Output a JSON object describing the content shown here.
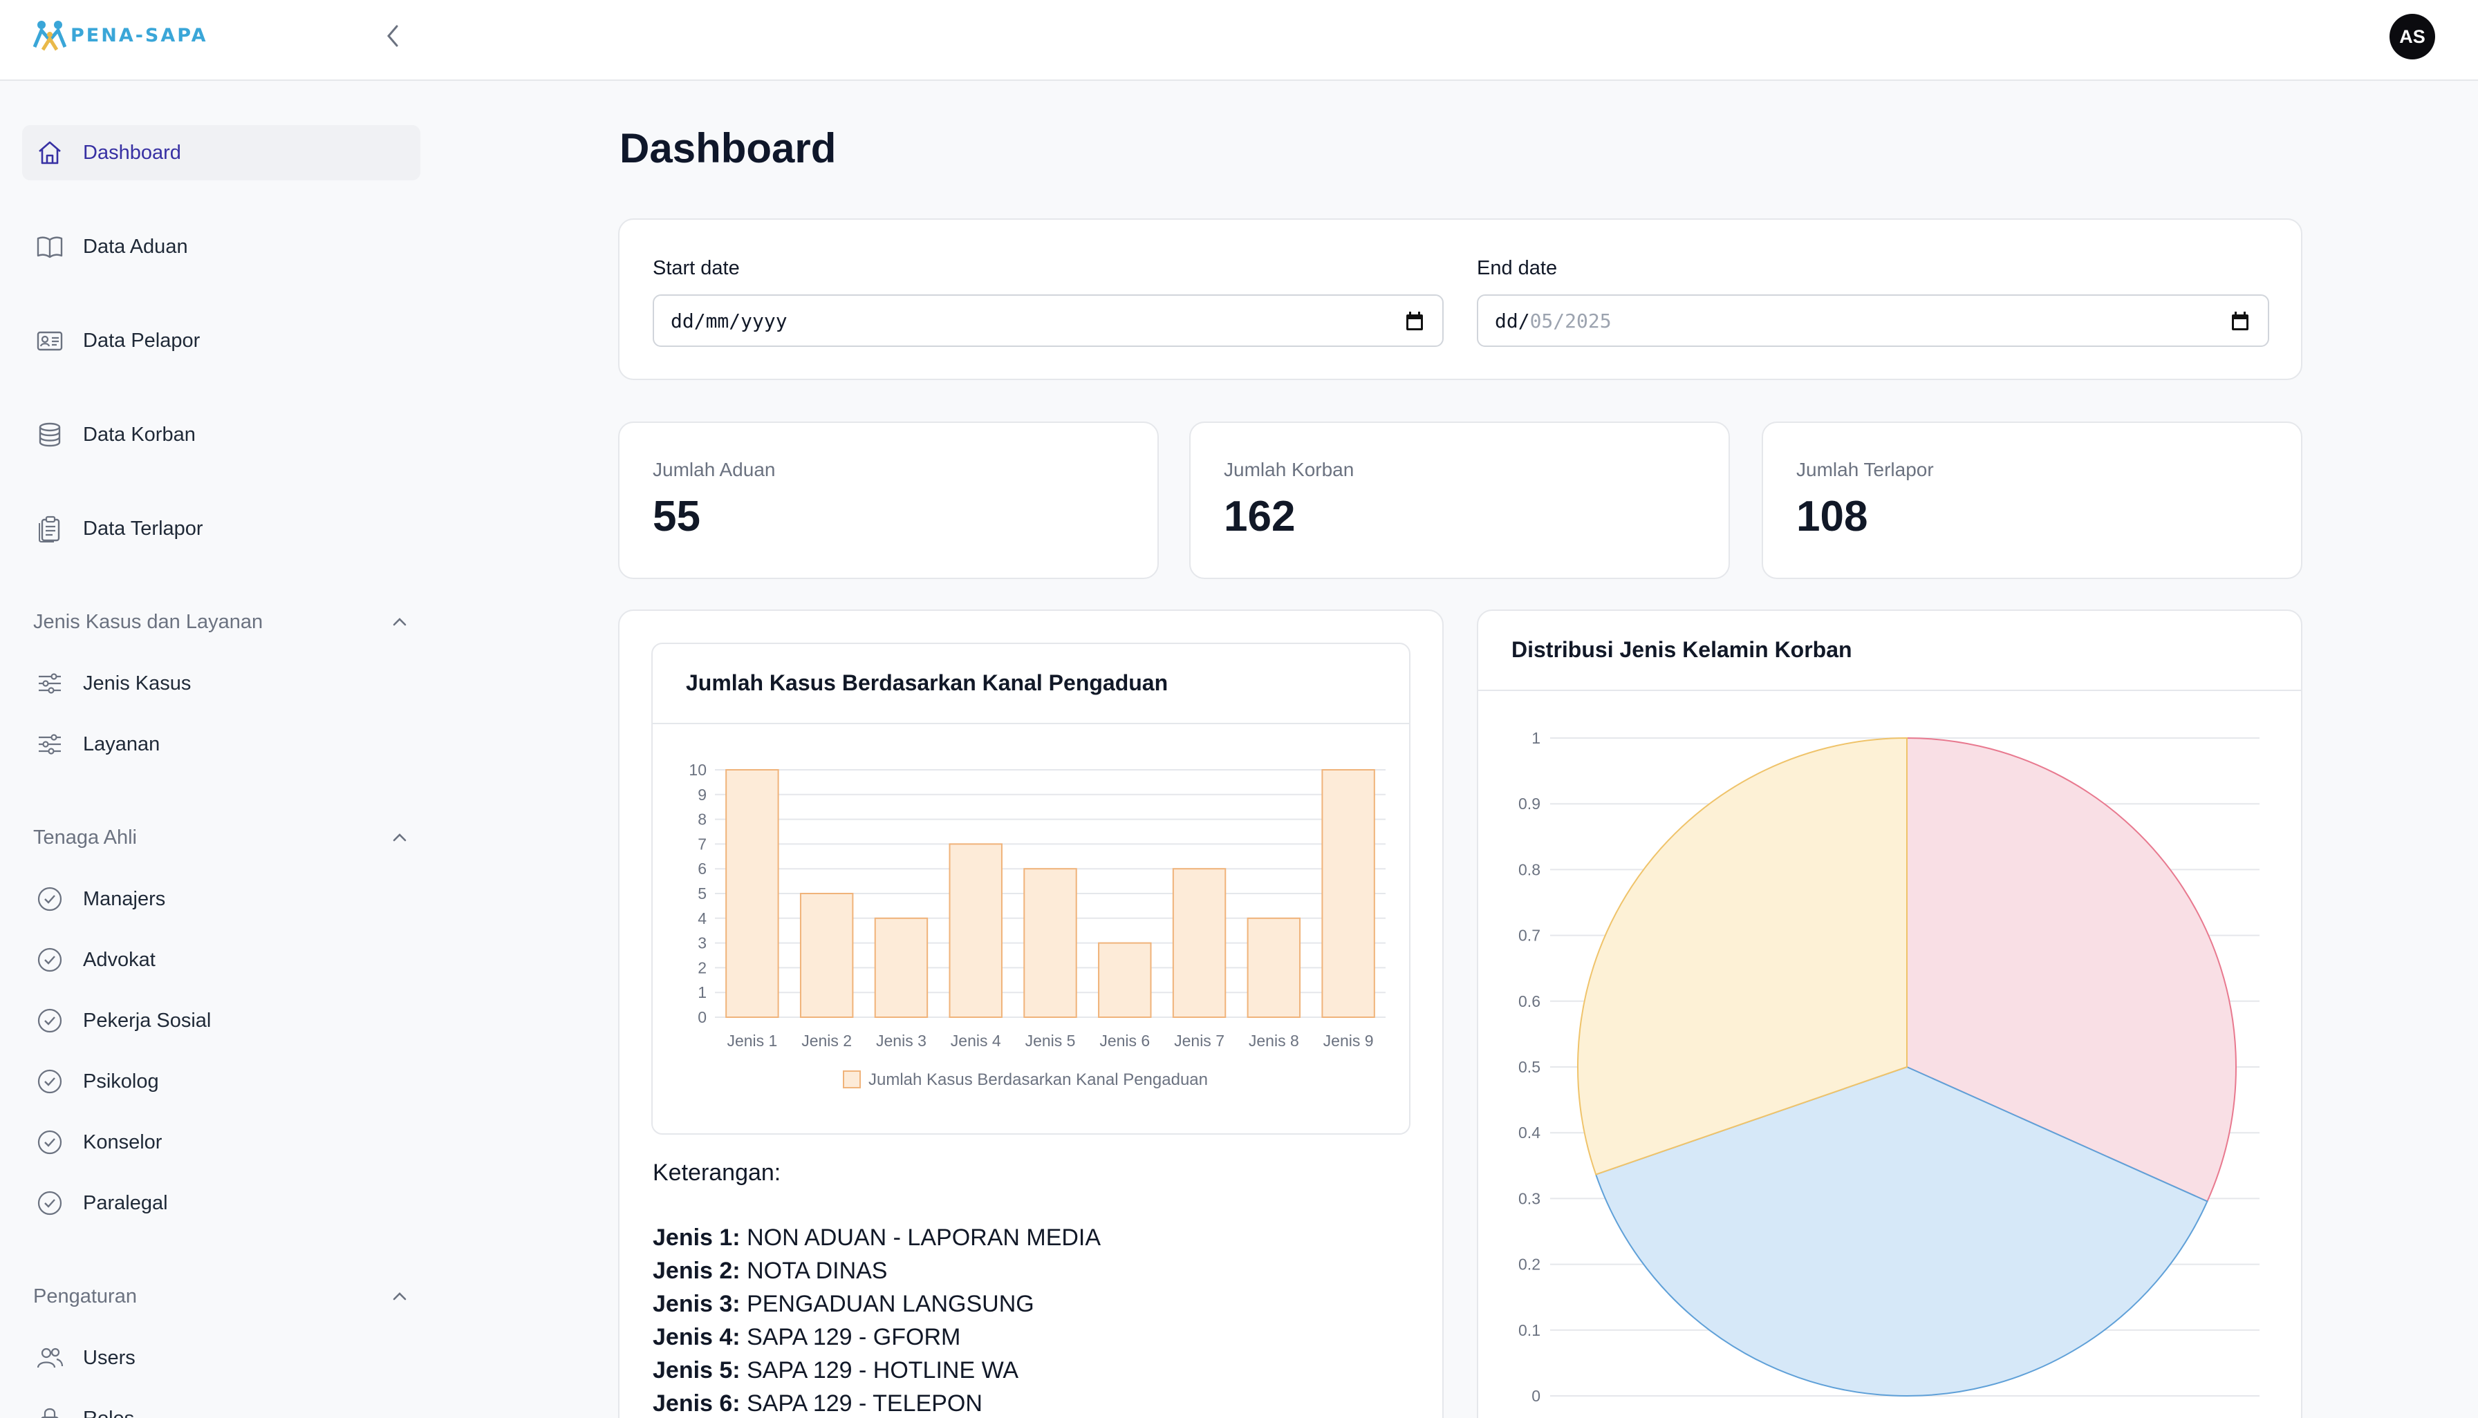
{
  "header": {
    "logo_text": "PENA-SAPA",
    "avatar_initials": "AS"
  },
  "sidebar": {
    "main_items": [
      {
        "label": "Dashboard",
        "icon": "home-icon",
        "active": true
      },
      {
        "label": "Data Aduan",
        "icon": "book-icon"
      },
      {
        "label": "Data Pelapor",
        "icon": "id-card-icon"
      },
      {
        "label": "Data Korban",
        "icon": "database-icon"
      },
      {
        "label": "Data Terlapor",
        "icon": "clipboard-icon"
      }
    ],
    "sections": [
      {
        "label": "Jenis Kasus dan Layanan",
        "items": [
          {
            "label": "Jenis Kasus",
            "icon": "sliders-icon"
          },
          {
            "label": "Layanan",
            "icon": "sliders-icon"
          }
        ]
      },
      {
        "label": "Tenaga Ahli",
        "items": [
          {
            "label": "Manajers",
            "icon": "check-circle-icon"
          },
          {
            "label": "Advokat",
            "icon": "check-circle-icon"
          },
          {
            "label": "Pekerja Sosial",
            "icon": "check-circle-icon"
          },
          {
            "label": "Psikolog",
            "icon": "check-circle-icon"
          },
          {
            "label": "Konselor",
            "icon": "check-circle-icon"
          },
          {
            "label": "Paralegal",
            "icon": "check-circle-icon"
          }
        ]
      },
      {
        "label": "Pengaturan",
        "items": [
          {
            "label": "Users",
            "icon": "users-icon"
          },
          {
            "label": "Roles",
            "icon": "lock-icon"
          }
        ]
      }
    ]
  },
  "main": {
    "title": "Dashboard",
    "filters": {
      "start_label": "Start date",
      "start_value": "dd/mm/yyyy",
      "end_label": "End date",
      "end_value_prefix": "dd/",
      "end_value_suffix": "05/2025"
    },
    "stats": [
      {
        "label": "Jumlah Aduan",
        "value": "55"
      },
      {
        "label": "Jumlah Korban",
        "value": "162"
      },
      {
        "label": "Jumlah Terlapor",
        "value": "108"
      }
    ],
    "keterangan_title": "Keterangan:",
    "keterangan": [
      {
        "key": "Jenis 1:",
        "value": "NON ADUAN - LAPORAN MEDIA"
      },
      {
        "key": "Jenis 2:",
        "value": "NOTA DINAS"
      },
      {
        "key": "Jenis 3:",
        "value": "PENGADUAN LANGSUNG"
      },
      {
        "key": "Jenis 4:",
        "value": "SAPA 129 - GFORM"
      },
      {
        "key": "Jenis 5:",
        "value": "SAPA 129 - HOTLINE WA"
      },
      {
        "key": "Jenis 6:",
        "value": "SAPA 129 - TELEPON"
      }
    ]
  },
  "colors": {
    "bar_fill": "#fdebd8",
    "bar_stroke": "#f0b37a",
    "pie_pink": "#f9dfe5",
    "pie_pink_stroke": "#e8798f",
    "pie_blue": "#d6e8f8",
    "pie_blue_stroke": "#5fa0d8",
    "pie_yellow": "#fdf1d6",
    "pie_yellow_stroke": "#efc36a",
    "accent": "#3730a3"
  },
  "chart_data": [
    {
      "type": "bar",
      "title": "Jumlah Kasus Berdasarkan Kanal Pengaduan",
      "categories": [
        "Jenis 1",
        "Jenis 2",
        "Jenis 3",
        "Jenis 4",
        "Jenis 5",
        "Jenis 6",
        "Jenis 7",
        "Jenis 8",
        "Jenis 9"
      ],
      "series": [
        {
          "name": "Jumlah Kasus Berdasarkan Kanal Pengaduan",
          "values": [
            10,
            5,
            4,
            7,
            6,
            3,
            6,
            4,
            10
          ]
        }
      ],
      "yticks": [
        "0",
        "1",
        "2",
        "3",
        "4",
        "5",
        "6",
        "7",
        "8",
        "9",
        "10"
      ],
      "ylim": [
        0,
        10
      ],
      "grid": true,
      "legend": "bottom"
    },
    {
      "type": "pie",
      "title": "Distribusi Jenis Kelamin Korban",
      "slices": [
        {
          "color": "pink",
          "value": 31.7
        },
        {
          "color": "blue",
          "value": 38.0
        },
        {
          "color": "yellow",
          "value": 30.3
        }
      ],
      "yticks": [
        "0",
        "0.1",
        "0.2",
        "0.3",
        "0.4",
        "0.5",
        "0.6",
        "0.7",
        "0.8",
        "0.9",
        "1"
      ],
      "ylim": [
        0,
        1
      ],
      "grid": true
    }
  ]
}
